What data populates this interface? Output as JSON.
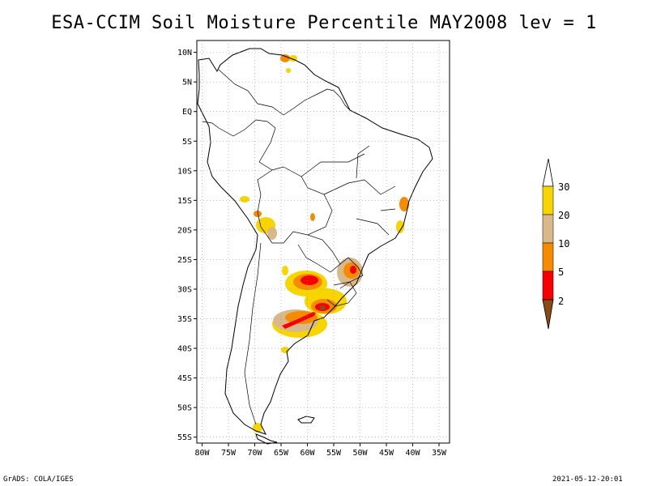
{
  "header": {
    "title": "ESA-CCIM Soil Moisture Percentile MAY2008 lev = 1"
  },
  "footer": {
    "left": "GrADS: COLA/IGES",
    "right": "2021-05-12-20:01"
  },
  "map": {
    "lat_ticks": [
      "10N",
      "5N",
      "EQ",
      "5S",
      "10S",
      "15S",
      "20S",
      "25S",
      "30S",
      "35S",
      "40S",
      "45S",
      "50S",
      "55S"
    ],
    "lon_ticks": [
      "80W",
      "75W",
      "70W",
      "65W",
      "60W",
      "55W",
      "50W",
      "45W",
      "40W",
      "35W"
    ],
    "lon_range": [
      -81,
      -33
    ],
    "lat_range": [
      -56,
      12
    ],
    "grid": true
  },
  "colorbar": {
    "labels": [
      "30",
      "20",
      "10",
      "5",
      "2"
    ],
    "colors": [
      "#f6d500",
      "#d9b88a",
      "#f68b00",
      "#f80000",
      "#8c4a14"
    ],
    "top_color": "#ffffff",
    "bottom_color": "#8c4a14"
  }
}
